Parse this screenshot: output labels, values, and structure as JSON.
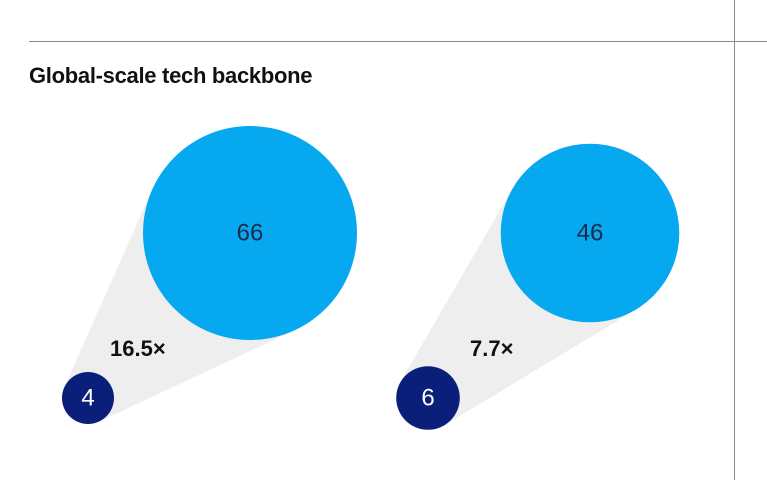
{
  "title": "Global-scale tech backbone",
  "colors": {
    "large_bubble": "#06a9f0",
    "small_bubble": "#0a1f7a",
    "cone": "#eeeeee",
    "rule": "#8a8a8a"
  },
  "chart_data": {
    "type": "bubble-comparison",
    "title": "Global-scale tech backbone",
    "groups": [
      {
        "small_value": 4,
        "large_value": 66,
        "ratio_label": "16.5×"
      },
      {
        "small_value": 6,
        "large_value": 46,
        "ratio_label": "7.7×"
      }
    ]
  }
}
